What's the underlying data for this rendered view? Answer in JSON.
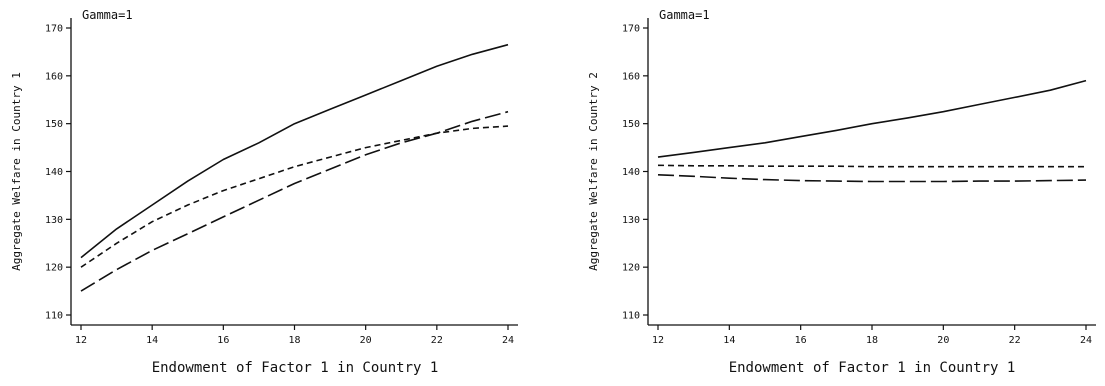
{
  "chart_data": [
    {
      "type": "line",
      "annotation": "Gamma=1",
      "xlabel": "Endowment of Factor 1 in Country 1",
      "ylabel": "Aggregate Welfare in Country 1",
      "xlim": [
        12,
        24
      ],
      "ylim": [
        110,
        170
      ],
      "xticks": [
        "12",
        "14",
        "16",
        "18",
        "20",
        "22",
        "24"
      ],
      "yticks": [
        "110",
        "120",
        "130",
        "140",
        "150",
        "160",
        "170"
      ],
      "x": [
        12,
        13,
        14,
        15,
        16,
        17,
        18,
        19,
        20,
        21,
        22,
        23,
        24
      ],
      "series": [
        {
          "style": "solid",
          "values": [
            122,
            128,
            133,
            138,
            142.5,
            146,
            150,
            153,
            156,
            159,
            162,
            164.5,
            166.5
          ]
        },
        {
          "style": "short-dash",
          "values": [
            120,
            125,
            129.5,
            133,
            136,
            138.5,
            141,
            143,
            145,
            146.5,
            148,
            149,
            149.5
          ]
        },
        {
          "style": "long-dash",
          "values": [
            115,
            119.5,
            123.5,
            127,
            130.5,
            134,
            137.5,
            140.5,
            143.5,
            146,
            148,
            150.5,
            152.5
          ]
        }
      ]
    },
    {
      "type": "line",
      "annotation": "Gamma=1",
      "xlabel": "Endowment of Factor 1 in Country 1",
      "ylabel": "Aggregate Welfare in Country 2",
      "xlim": [
        12,
        24
      ],
      "ylim": [
        110,
        170
      ],
      "xticks": [
        "12",
        "14",
        "16",
        "18",
        "20",
        "22",
        "24"
      ],
      "yticks": [
        "110",
        "120",
        "130",
        "140",
        "150",
        "160",
        "170"
      ],
      "x": [
        12,
        13,
        14,
        15,
        16,
        17,
        18,
        19,
        20,
        21,
        22,
        23,
        24
      ],
      "series": [
        {
          "style": "solid",
          "values": [
            143,
            144,
            145,
            146,
            147.3,
            148.6,
            150,
            151.2,
            152.5,
            154,
            155.5,
            157,
            159
          ]
        },
        {
          "style": "short-dash",
          "values": [
            141.3,
            141.2,
            141.2,
            141.1,
            141.1,
            141.1,
            141,
            141,
            141,
            141,
            141,
            141,
            141
          ]
        },
        {
          "style": "long-dash",
          "values": [
            139.3,
            139,
            138.6,
            138.3,
            138.1,
            138,
            137.9,
            137.9,
            137.9,
            138,
            138,
            138.1,
            138.2
          ]
        }
      ]
    }
  ]
}
